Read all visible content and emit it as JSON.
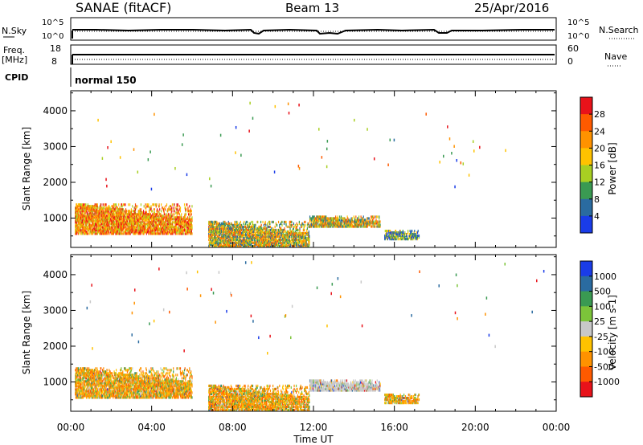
{
  "header": {
    "title": "SANAE (fitACF)",
    "beam": "Beam 13",
    "date": "25/Apr/2016"
  },
  "strips": {
    "nsky_label": "N.Sky",
    "nsky_ticks": [
      "10^5",
      "10^0"
    ],
    "nsearch_label": "N.Search",
    "nsearch_ticks": [
      "10^5",
      "10^0"
    ],
    "freq_label_1": "Freq.",
    "freq_label_2": "[MHz]",
    "freq_ticks": [
      "18",
      "8"
    ],
    "nave_label": "Nave",
    "nave_ticks": [
      "60",
      "0"
    ],
    "cpid_label": "CPID",
    "cpid_value": "normal 150"
  },
  "chart_data": [
    {
      "type": "heatmap",
      "title": "",
      "xlabel": "Time UT",
      "ylabel": "Slant Range [km]",
      "xlim": [
        0,
        24
      ],
      "ylim": [
        180,
        4560
      ],
      "x_ticks": [
        "00:00",
        "04:00",
        "08:00",
        "12:00",
        "16:00",
        "20:00",
        "00:00"
      ],
      "y_ticks": [
        "1000",
        "2000",
        "3000",
        "4000"
      ],
      "y_tick_values": [
        1000,
        2000,
        3000,
        4000
      ],
      "colorbar": {
        "label": "Power [dB]",
        "tick_labels": [
          "28",
          "24",
          "20",
          "16",
          "12",
          "8",
          "4"
        ],
        "bins_top_to_bottom": [
          "#e8121a",
          "#ff5a00",
          "#ff9200",
          "#ffc200",
          "#a8cf22",
          "#3a9a52",
          "#2a6ba0",
          "#1a3ce8"
        ]
      },
      "echo_regions": [
        {
          "t0": 0.2,
          "t1": 6.0,
          "r0": 600,
          "r1": 1450,
          "level": "high"
        },
        {
          "t0": 6.8,
          "t1": 11.8,
          "r0": 250,
          "r1": 950,
          "level": "mid"
        },
        {
          "t0": 11.8,
          "t1": 15.3,
          "r0": 800,
          "r1": 1100,
          "level": "mid"
        },
        {
          "t0": 15.5,
          "t1": 17.2,
          "r0": 450,
          "r1": 700,
          "level": "low"
        }
      ],
      "scattered_echo_count": 60
    },
    {
      "type": "heatmap",
      "title": "",
      "xlabel": "Time UT",
      "ylabel": "Slant Range [km]",
      "xlim": [
        0,
        24
      ],
      "ylim": [
        180,
        4560
      ],
      "x_ticks": [
        "00:00",
        "04:00",
        "08:00",
        "12:00",
        "16:00",
        "20:00",
        "00:00"
      ],
      "y_ticks": [
        "1000",
        "2000",
        "3000",
        "4000"
      ],
      "y_tick_values": [
        1000,
        2000,
        3000,
        4000
      ],
      "colorbar": {
        "label": "Velocity [m s-1]",
        "tick_labels": [
          "1000",
          "500",
          "100",
          "25",
          "-25",
          "-100",
          "-500",
          "-1000"
        ],
        "bins_top_to_bottom": [
          "#1a3ce8",
          "#2a6ba0",
          "#3a9a52",
          "#7cc43a",
          "#c8c8c8",
          "#ffc200",
          "#ff9200",
          "#ff5a00",
          "#e8121a"
        ]
      },
      "echo_regions": [
        {
          "t0": 0.2,
          "t1": 6.0,
          "r0": 600,
          "r1": 1450,
          "level": "mixed"
        },
        {
          "t0": 6.8,
          "t1": 11.8,
          "r0": 250,
          "r1": 950,
          "level": "mixed"
        },
        {
          "t0": 11.8,
          "t1": 15.3,
          "r0": 800,
          "r1": 1100,
          "level": "grey"
        },
        {
          "t0": 15.5,
          "t1": 17.2,
          "r0": 450,
          "r1": 700,
          "level": "mixed"
        }
      ],
      "scattered_echo_count": 60
    }
  ]
}
